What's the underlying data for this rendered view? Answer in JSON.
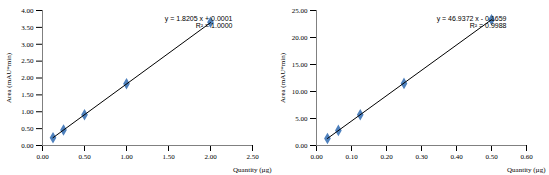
{
  "chart_data": [
    {
      "type": "scatter",
      "xlabel": "Quantity (µg)",
      "ylabel": "Area (mAU*min)",
      "annotations": [
        "y = 1.8205 x + 0.0001",
        "R² = 1.0000"
      ],
      "series": [
        {
          "type": "scatter",
          "marker": "diamond",
          "color": "#4f81bd",
          "x": [
            0.125,
            0.25,
            0.5,
            1.0,
            2.0
          ],
          "values": [
            0.23,
            0.46,
            0.91,
            1.83,
            3.65
          ]
        },
        {
          "type": "line",
          "line_style": "solid",
          "color": "#000000",
          "x": [
            0.125,
            2.0
          ],
          "values": [
            0.23,
            3.64
          ]
        }
      ],
      "xlim": [
        0,
        2.5
      ],
      "xticks": [
        {
          "value": 0,
          "label": "0.00"
        },
        {
          "value": 0.5,
          "label": "0.50"
        },
        {
          "value": 1,
          "label": "1.00"
        },
        {
          "value": 1.5,
          "label": "1.50"
        },
        {
          "value": 2,
          "label": "2.00"
        },
        {
          "value": 2.5,
          "label": "2.50"
        }
      ],
      "ylim": [
        0,
        4
      ],
      "yticks": [
        {
          "value": 0,
          "label": "0.00"
        },
        {
          "value": 0.5,
          "label": "0.50"
        },
        {
          "value": 1,
          "label": "1.00"
        },
        {
          "value": 1.5,
          "label": "1.50"
        },
        {
          "value": 2,
          "label": "2.00"
        },
        {
          "value": 2.5,
          "label": "2.50"
        },
        {
          "value": 3,
          "label": "3.00"
        },
        {
          "value": 3.5,
          "label": "3.50"
        },
        {
          "value": 4,
          "label": "4.00"
        }
      ],
      "grid": false
    },
    {
      "type": "scatter",
      "xlabel": "Quantity (µg)",
      "ylabel": "Area (mAU*min)",
      "annotations": [
        "y = 46.9372 x - 0.1659",
        "R² = 0.9988"
      ],
      "series": [
        {
          "type": "scatter",
          "marker": "diamond",
          "color": "#4f81bd",
          "x": [
            0.03125,
            0.0625,
            0.125,
            0.25,
            0.5
          ],
          "values": [
            1.3,
            2.8,
            5.7,
            11.5,
            23.3
          ]
        },
        {
          "type": "line",
          "line_style": "solid",
          "color": "#000000",
          "x": [
            0.03125,
            0.5
          ],
          "values": [
            1.3,
            23.3
          ]
        }
      ],
      "xlim": [
        0,
        0.6
      ],
      "xticks": [
        {
          "value": 0,
          "label": "0.00"
        },
        {
          "value": 0.1,
          "label": "0.10"
        },
        {
          "value": 0.2,
          "label": "0.20"
        },
        {
          "value": 0.3,
          "label": "0.30"
        },
        {
          "value": 0.4,
          "label": "0.40"
        },
        {
          "value": 0.5,
          "label": "0.50"
        },
        {
          "value": 0.6,
          "label": "0.60"
        }
      ],
      "ylim": [
        0,
        25
      ],
      "yticks": [
        {
          "value": 0,
          "label": "0.00"
        },
        {
          "value": 5,
          "label": "5.00"
        },
        {
          "value": 10,
          "label": "10.00"
        },
        {
          "value": 15,
          "label": "15.00"
        },
        {
          "value": 20,
          "label": "20.00"
        },
        {
          "value": 25,
          "label": "25.00"
        }
      ],
      "grid": false
    }
  ]
}
